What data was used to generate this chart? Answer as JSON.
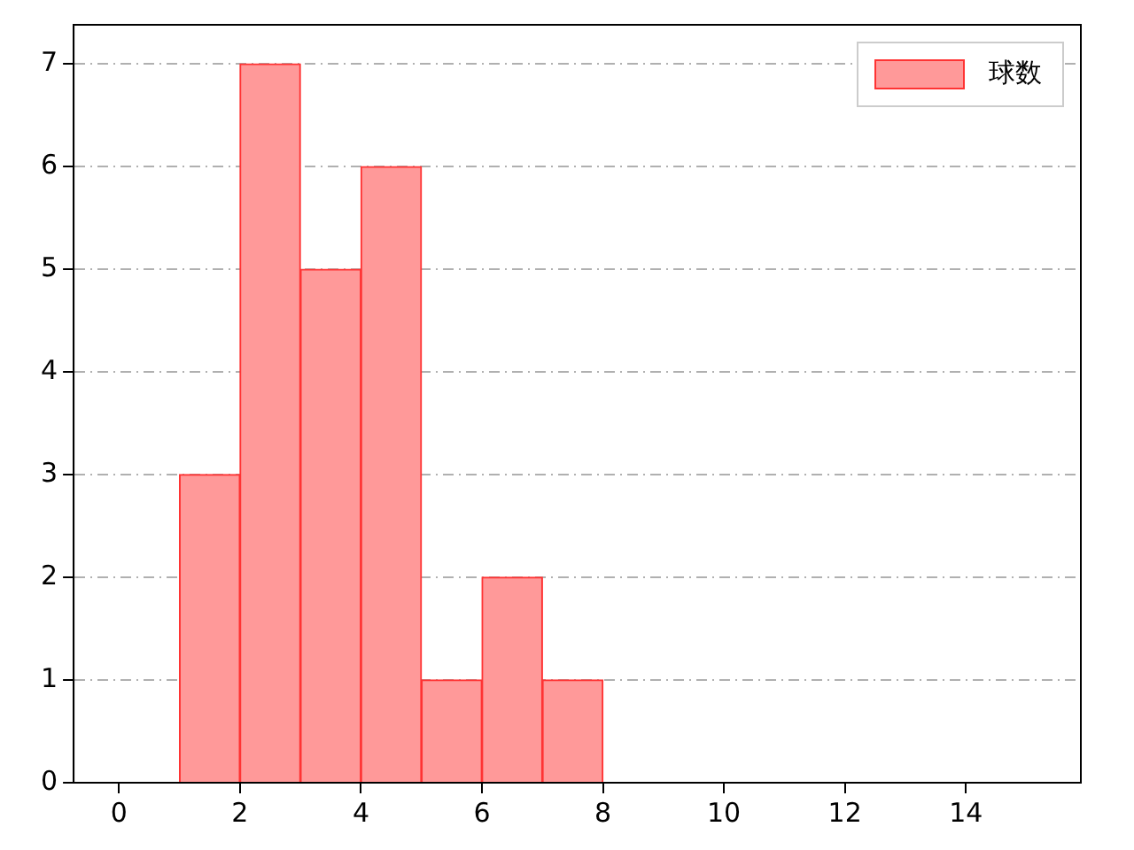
{
  "chart_data": {
    "type": "histogram",
    "bins": [
      1,
      2,
      3,
      4,
      5,
      6,
      7,
      8
    ],
    "series": [
      {
        "name": "球数",
        "color": "#ff9999",
        "values": [
          3,
          7,
          5,
          6,
          1,
          2,
          1
        ]
      }
    ],
    "xlim": [
      -0.75,
      15.9
    ],
    "xticks": [
      0,
      2,
      4,
      6,
      8,
      10,
      12,
      14
    ],
    "ylim": [
      0,
      7.38
    ],
    "yticks": [
      0,
      1,
      2,
      3,
      4,
      5,
      6,
      7
    ],
    "grid": "y",
    "legend": "top right"
  }
}
